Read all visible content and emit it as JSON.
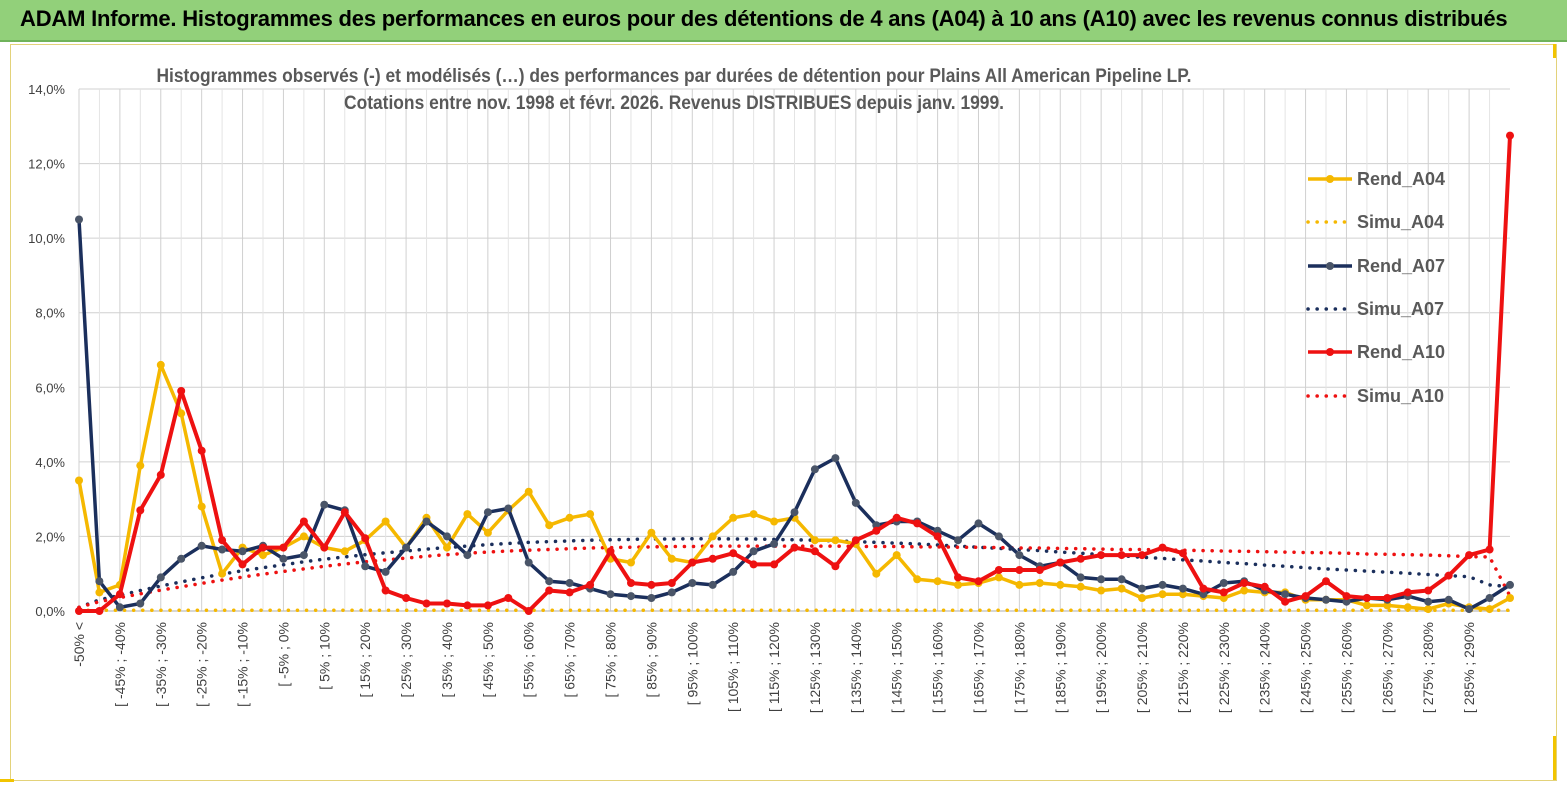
{
  "banner": {
    "title": "ADAM Informe. Histogrammes des performances en euros pour des détentions de 4 ans (A04) à 10 ans (A10) avec les revenus connus distribués"
  },
  "colors": {
    "banner_bg": "#92d07a",
    "A04": "#f5b800",
    "A07": "#1b2f5c",
    "A10": "#ee1111",
    "grid": "#d0d0d0",
    "title_text": "#595959"
  },
  "chart_data": {
    "type": "line",
    "title_line1": "Histogrammes observés (-) et modélisés (…) des performances par durées de détention pour Plains All American Pipeline LP.",
    "title_line2": "Cotations entre nov. 1998 et févr. 2026. Revenus DISTRIBUES depuis janv. 1999.",
    "ylim": [
      0,
      14
    ],
    "y_ticks": [
      0,
      2,
      4,
      6,
      8,
      10,
      12,
      14
    ],
    "y_tick_labels": [
      "0,0%",
      "2,0%",
      "4,0%",
      "6,0%",
      "8,0%",
      "10,0%",
      "12,0%",
      "14,0%"
    ],
    "x_tick_labels": [
      "-50% <",
      "[ -45% ; -40%",
      "[ -35% ; -30%",
      "[ -25% ; -20%",
      "[ -15% ; -10%",
      "[ -5% ; 0%",
      "[ 5% ; 10%",
      "[ 15% ; 20%",
      "[ 25% ; 30%",
      "[ 35% ; 40%",
      "[ 45% ; 50%",
      "[ 55% ; 60%",
      "[ 65% ; 70%",
      "[ 75% ; 80%",
      "[ 85% ; 90%",
      "[ 95% ; 100%",
      "[ 105% ; 110%",
      "[ 115% ; 120%",
      "[ 125% ; 130%",
      "[ 135% ; 140%",
      "[ 145% ; 150%",
      "[ 155% ; 160%",
      "[ 165% ; 170%",
      "[ 175% ; 180%",
      "[ 185% ; 190%",
      "[ 195% ; 200%",
      "[ 205% ; 210%",
      "[ 215% ; 220%",
      "[ 225% ; 230%",
      "[ 235% ; 240%",
      "[ 245% ; 250%",
      "[ 255% ; 260%",
      "[ 265% ; 270%",
      "[ 275% ; 280%",
      "[ 285% ; 290%"
    ],
    "n_points": 71,
    "series": [
      {
        "name": "Rend_A04",
        "style": "solid",
        "color": "#f5b800",
        "values": [
          3.5,
          0.5,
          0.7,
          3.9,
          6.6,
          5.3,
          2.8,
          1.0,
          1.7,
          1.5,
          1.7,
          2.0,
          1.7,
          1.6,
          1.9,
          2.4,
          1.7,
          2.5,
          1.7,
          2.6,
          2.1,
          2.7,
          3.2,
          2.3,
          2.5,
          2.6,
          1.4,
          1.3,
          2.1,
          1.4,
          1.3,
          2.0,
          2.5,
          2.6,
          2.4,
          2.5,
          1.9,
          1.9,
          1.8,
          1.0,
          1.5,
          0.85,
          0.8,
          0.7,
          0.75,
          0.9,
          0.7,
          0.75,
          0.7,
          0.65,
          0.55,
          0.6,
          0.35,
          0.45,
          0.45,
          0.4,
          0.35,
          0.55,
          0.5,
          0.5,
          0.3,
          0.3,
          0.3,
          0.15,
          0.15,
          0.1,
          0.05,
          0.2,
          0.1,
          0.05,
          0.35
        ]
      },
      {
        "name": "Simu_A04",
        "style": "dotted",
        "color": "#f5b800",
        "values": [
          0.02,
          0.02,
          0.02,
          0.02,
          0.02,
          0.02,
          0.02,
          0.02,
          0.02,
          0.02,
          0.02,
          0.02,
          0.02,
          0.02,
          0.02,
          0.02,
          0.02,
          0.02,
          0.02,
          0.02,
          0.02,
          0.02,
          0.02,
          0.02,
          0.02,
          0.02,
          0.02,
          0.02,
          0.02,
          0.02,
          0.02,
          0.02,
          0.02,
          0.02,
          0.02,
          0.02,
          0.02,
          0.02,
          0.02,
          0.02,
          0.02,
          0.02,
          0.02,
          0.02,
          0.02,
          0.02,
          0.02,
          0.02,
          0.02,
          0.02,
          0.02,
          0.02,
          0.02,
          0.02,
          0.02,
          0.02,
          0.02,
          0.02,
          0.02,
          0.02,
          0.02,
          0.02,
          0.02,
          0.02,
          0.02,
          0.02,
          0.02,
          0.02,
          0.02,
          0.02,
          0.02
        ]
      },
      {
        "name": "Rend_A07",
        "style": "solid",
        "color": "#1b2f5c",
        "values": [
          10.5,
          0.8,
          0.1,
          0.2,
          0.9,
          1.4,
          1.75,
          1.65,
          1.6,
          1.75,
          1.4,
          1.5,
          2.85,
          2.7,
          1.2,
          1.05,
          1.7,
          2.4,
          2.0,
          1.5,
          2.65,
          2.75,
          1.3,
          0.8,
          0.75,
          0.6,
          0.45,
          0.4,
          0.35,
          0.5,
          0.75,
          0.7,
          1.05,
          1.6,
          1.8,
          2.65,
          3.8,
          4.1,
          2.9,
          2.3,
          2.4,
          2.4,
          2.15,
          1.9,
          2.35,
          2.0,
          1.5,
          1.2,
          1.3,
          0.9,
          0.85,
          0.85,
          0.6,
          0.7,
          0.6,
          0.45,
          0.75,
          0.8,
          0.55,
          0.45,
          0.35,
          0.3,
          0.25,
          0.35,
          0.3,
          0.4,
          0.25,
          0.3,
          0.05,
          0.35,
          0.7
        ]
      },
      {
        "name": "Simu_A07",
        "style": "dotted",
        "color": "#1b2f5c",
        "values": [
          0.1,
          0.3,
          0.42,
          0.55,
          0.67,
          0.78,
          0.89,
          0.99,
          1.08,
          1.16,
          1.24,
          1.32,
          1.39,
          1.45,
          1.51,
          1.56,
          1.61,
          1.66,
          1.7,
          1.74,
          1.78,
          1.81,
          1.84,
          1.86,
          1.88,
          1.9,
          1.91,
          1.92,
          1.93,
          1.93,
          1.94,
          1.94,
          1.93,
          1.93,
          1.92,
          1.91,
          1.9,
          1.88,
          1.86,
          1.84,
          1.82,
          1.8,
          1.77,
          1.74,
          1.71,
          1.68,
          1.65,
          1.62,
          1.58,
          1.55,
          1.51,
          1.48,
          1.44,
          1.41,
          1.37,
          1.34,
          1.3,
          1.27,
          1.23,
          1.2,
          1.16,
          1.13,
          1.1,
          1.07,
          1.04,
          1.01,
          0.98,
          0.95,
          0.92,
          0.7,
          0.65
        ]
      },
      {
        "name": "Rend_A10",
        "style": "solid",
        "color": "#ee1111",
        "values": [
          0.0,
          0.0,
          0.45,
          2.7,
          3.65,
          5.9,
          4.3,
          1.9,
          1.25,
          1.7,
          1.7,
          2.4,
          1.7,
          2.65,
          1.95,
          0.55,
          0.35,
          0.2,
          0.2,
          0.15,
          0.15,
          0.35,
          0.0,
          0.55,
          0.5,
          0.7,
          1.6,
          0.75,
          0.7,
          0.75,
          1.3,
          1.4,
          1.55,
          1.25,
          1.25,
          1.7,
          1.6,
          1.2,
          1.9,
          2.15,
          2.5,
          2.35,
          2.0,
          0.9,
          0.8,
          1.1,
          1.1,
          1.1,
          1.3,
          1.4,
          1.5,
          1.5,
          1.5,
          1.7,
          1.55,
          0.6,
          0.5,
          0.75,
          0.65,
          0.25,
          0.4,
          0.8,
          0.4,
          0.35,
          0.35,
          0.5,
          0.55,
          0.95,
          1.5,
          1.65,
          12.75
        ]
      },
      {
        "name": "Simu_A10",
        "style": "dotted",
        "color": "#ee1111",
        "values": [
          0.1,
          0.25,
          0.36,
          0.46,
          0.56,
          0.65,
          0.74,
          0.83,
          0.91,
          0.99,
          1.06,
          1.13,
          1.2,
          1.26,
          1.32,
          1.37,
          1.42,
          1.47,
          1.51,
          1.55,
          1.58,
          1.61,
          1.63,
          1.65,
          1.67,
          1.69,
          1.7,
          1.71,
          1.72,
          1.73,
          1.73,
          1.74,
          1.74,
          1.74,
          1.74,
          1.74,
          1.74,
          1.74,
          1.73,
          1.73,
          1.73,
          1.72,
          1.72,
          1.71,
          1.71,
          1.7,
          1.69,
          1.69,
          1.68,
          1.67,
          1.66,
          1.65,
          1.65,
          1.64,
          1.63,
          1.62,
          1.61,
          1.6,
          1.59,
          1.58,
          1.57,
          1.56,
          1.55,
          1.53,
          1.52,
          1.51,
          1.5,
          1.48,
          1.46,
          1.45,
          0.4
        ]
      }
    ],
    "legend": [
      "Rend_A04",
      "Simu_A04",
      "Rend_A07",
      "Simu_A07",
      "Rend_A10",
      "Simu_A10"
    ],
    "legend_position": "right"
  }
}
